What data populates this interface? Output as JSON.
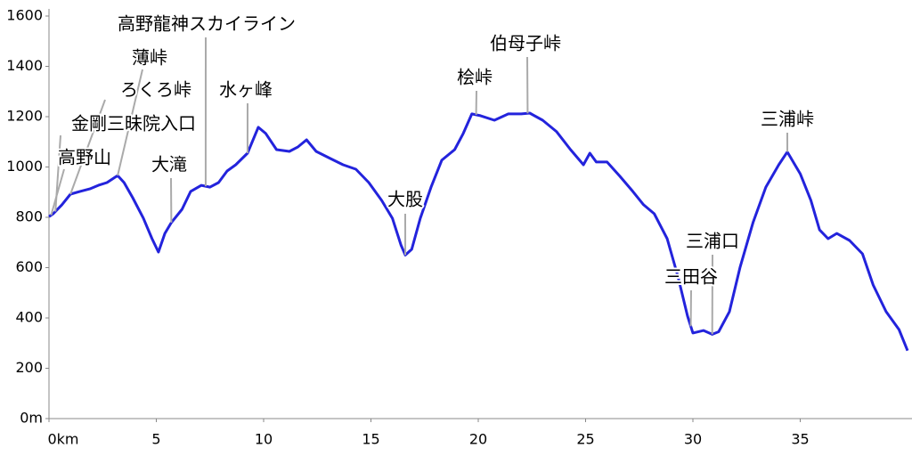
{
  "chart_data": {
    "type": "line",
    "xlim": [
      0,
      40
    ],
    "ylim": [
      0,
      1600
    ],
    "xticks": [
      {
        "value": 0,
        "label": "0km"
      },
      5,
      10,
      15,
      20,
      25,
      30,
      35
    ],
    "yticks": [
      {
        "value": 0,
        "label": "0m"
      },
      200,
      400,
      600,
      800,
      1000,
      1200,
      1400,
      1600
    ],
    "series": [
      {
        "color": "#2323dc",
        "x": [
          0,
          0.2,
          0.6,
          1.0,
          1.45,
          1.9,
          2.3,
          2.7,
          3.2,
          3.5,
          3.9,
          4.4,
          4.8,
          5.1,
          5.4,
          5.7,
          6.2,
          6.6,
          7.1,
          7.5,
          7.9,
          8.3,
          8.7,
          9.25,
          9.75,
          10.1,
          10.6,
          11.2,
          11.6,
          12.0,
          12.45,
          13.1,
          13.7,
          14.3,
          14.9,
          15.5,
          16.0,
          16.4,
          16.6,
          16.9,
          17.3,
          17.8,
          18.3,
          18.9,
          19.3,
          19.7,
          20.1,
          20.75,
          21.4,
          22.0,
          22.4,
          23.0,
          23.65,
          24.3,
          24.9,
          25.2,
          25.5,
          26.0,
          26.6,
          27.2,
          27.7,
          28.2,
          28.8,
          29.3,
          29.75,
          30.0,
          30.5,
          30.9,
          31.2,
          31.7,
          32.2,
          32.8,
          33.4,
          34.0,
          34.4,
          35.0,
          35.5,
          35.9,
          36.3,
          36.7,
          37.3,
          37.9,
          38.4,
          39.0,
          39.6,
          40.0
        ],
        "values": [
          803,
          814,
          850,
          892,
          903,
          913,
          927,
          938,
          966,
          938,
          878,
          796,
          715,
          662,
          736,
          779,
          832,
          903,
          927,
          920,
          938,
          984,
          1009,
          1055,
          1158,
          1133,
          1069,
          1062,
          1080,
          1108,
          1062,
          1034,
          1009,
          991,
          938,
          867,
          796,
          690,
          650,
          673,
          796,
          920,
          1027,
          1069,
          1133,
          1211,
          1204,
          1186,
          1211,
          1211,
          1214,
          1186,
          1140,
          1069,
          1009,
          1055,
          1020,
          1020,
          963,
          903,
          850,
          814,
          715,
          566,
          407,
          340,
          350,
          335,
          345,
          425,
          602,
          779,
          920,
          1009,
          1060,
          973,
          867,
          750,
          715,
          736,
          708,
          655,
          531,
          425,
          354,
          270
        ]
      }
    ],
    "annotations": [
      {
        "text": "高野山",
        "x": 0.1
      },
      {
        "text": "金剛三昧院入口",
        "x": 0.3
      },
      {
        "text": "ろくろ峠",
        "x": 1.0
      },
      {
        "text": "薄峠",
        "x": 3.2
      },
      {
        "text": "高野龍神スカイライン",
        "x": 7.3
      },
      {
        "text": "大滝",
        "x": 5.7
      },
      {
        "text": "水ヶ峰",
        "x": 9.25
      },
      {
        "text": "大股",
        "x": 16.6
      },
      {
        "text": "桧峠",
        "x": 19.9
      },
      {
        "text": "伯母子峠",
        "x": 22.3
      },
      {
        "text": "三浦峠",
        "x": 34.4
      },
      {
        "text": "三浦口",
        "x": 30.9
      },
      {
        "text": "三田谷",
        "x": 29.9
      }
    ]
  }
}
